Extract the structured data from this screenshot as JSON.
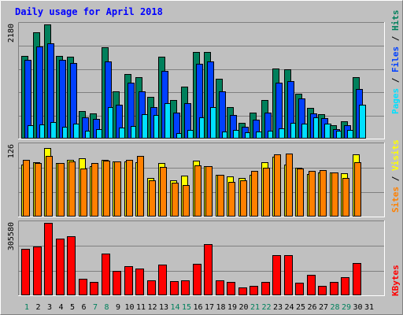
{
  "title": "Daily usage for April 2018",
  "colors": {
    "background": "#C0C0C0",
    "title": "#0000FF",
    "hits": "#00805C",
    "files": "#0040FF",
    "pages": "#00E0FF",
    "visits": "#FFFF00",
    "sites": "#FF8000",
    "kbytes": "#FF0000",
    "weekend": "#00805C",
    "weekday": "#000000"
  },
  "chart_data": [
    {
      "type": "bar",
      "panel": "hits-files-pages",
      "y_max_label": "2180",
      "right_labels": [
        "Hits",
        "Files",
        "Pages"
      ],
      "ylim": [
        0,
        2180
      ],
      "categories": [
        "1",
        "2",
        "3",
        "4",
        "5",
        "6",
        "7",
        "8",
        "9",
        "10",
        "11",
        "12",
        "13",
        "14",
        "15",
        "16",
        "17",
        "18",
        "19",
        "20",
        "21",
        "22",
        "23",
        "24",
        "25",
        "26",
        "27",
        "28",
        "29",
        "30",
        "31"
      ],
      "series": [
        {
          "name": "Hits",
          "values": [
            1580,
            2030,
            2180,
            1580,
            1560,
            520,
            480,
            1740,
            900,
            1240,
            1180,
            800,
            1560,
            730,
            990,
            1650,
            1650,
            1150,
            600,
            300,
            500,
            730,
            1340,
            1330,
            860,
            580,
            470,
            250,
            330,
            1180,
            0
          ]
        },
        {
          "name": "Files",
          "values": [
            1500,
            1760,
            1820,
            1500,
            1450,
            400,
            380,
            1480,
            650,
            1060,
            900,
            600,
            1300,
            500,
            670,
            1430,
            1480,
            900,
            450,
            230,
            360,
            500,
            1060,
            1100,
            760,
            480,
            390,
            180,
            260,
            950,
            0
          ]
        },
        {
          "name": "Pages",
          "values": [
            250,
            270,
            310,
            230,
            280,
            150,
            180,
            600,
            210,
            240,
            470,
            450,
            680,
            110,
            160,
            400,
            600,
            140,
            170,
            120,
            130,
            150,
            190,
            300,
            280,
            400,
            280,
            150,
            160,
            650,
            0
          ]
        }
      ]
    },
    {
      "type": "bar",
      "panel": "visits-sites",
      "y_max_label": "126",
      "right_labels": [
        "Visits",
        "Sites"
      ],
      "ylim": [
        0,
        126
      ],
      "categories": [
        "1",
        "2",
        "3",
        "4",
        "5",
        "6",
        "7",
        "8",
        "9",
        "10",
        "11",
        "12",
        "13",
        "14",
        "15",
        "16",
        "17",
        "18",
        "19",
        "20",
        "21",
        "22",
        "23",
        "24",
        "25",
        "26",
        "27",
        "28",
        "29",
        "30",
        "31"
      ],
      "series": [
        {
          "name": "Visits",
          "values": [
            92,
            95,
            120,
            94,
            100,
            102,
            88,
            100,
            97,
            97,
            96,
            68,
            94,
            64,
            72,
            98,
            88,
            74,
            70,
            68,
            73,
            96,
            105,
            92,
            86,
            75,
            78,
            77,
            76,
            110,
            0
          ]
        },
        {
          "name": "Sites",
          "values": [
            100,
            94,
            106,
            94,
            97,
            85,
            94,
            98,
            97,
            100,
            107,
            64,
            87,
            59,
            55,
            90,
            89,
            73,
            61,
            63,
            80,
            86,
            110,
            111,
            85,
            80,
            82,
            78,
            68,
            96,
            0
          ]
        }
      ]
    },
    {
      "type": "bar",
      "panel": "kbytes",
      "y_max_label": "305580",
      "right_labels": [
        "KBytes"
      ],
      "ylim": [
        0,
        305580
      ],
      "categories": [
        "1",
        "2",
        "3",
        "4",
        "5",
        "6",
        "7",
        "8",
        "9",
        "10",
        "11",
        "12",
        "13",
        "14",
        "15",
        "16",
        "17",
        "18",
        "19",
        "20",
        "21",
        "22",
        "23",
        "24",
        "25",
        "26",
        "27",
        "28",
        "29",
        "30",
        "31"
      ],
      "series": [
        {
          "name": "KBytes",
          "values": [
            195000,
            205000,
            305580,
            238000,
            250000,
            70000,
            58000,
            177000,
            102000,
            123000,
            112000,
            62000,
            130000,
            60000,
            62000,
            133000,
            215000,
            62000,
            57000,
            34000,
            40000,
            58000,
            168000,
            170000,
            52000,
            85000,
            39000,
            55000,
            77000,
            135000,
            0
          ]
        }
      ]
    }
  ],
  "weekend_days": [
    1,
    7,
    8,
    14,
    15,
    21,
    22,
    28,
    29
  ]
}
